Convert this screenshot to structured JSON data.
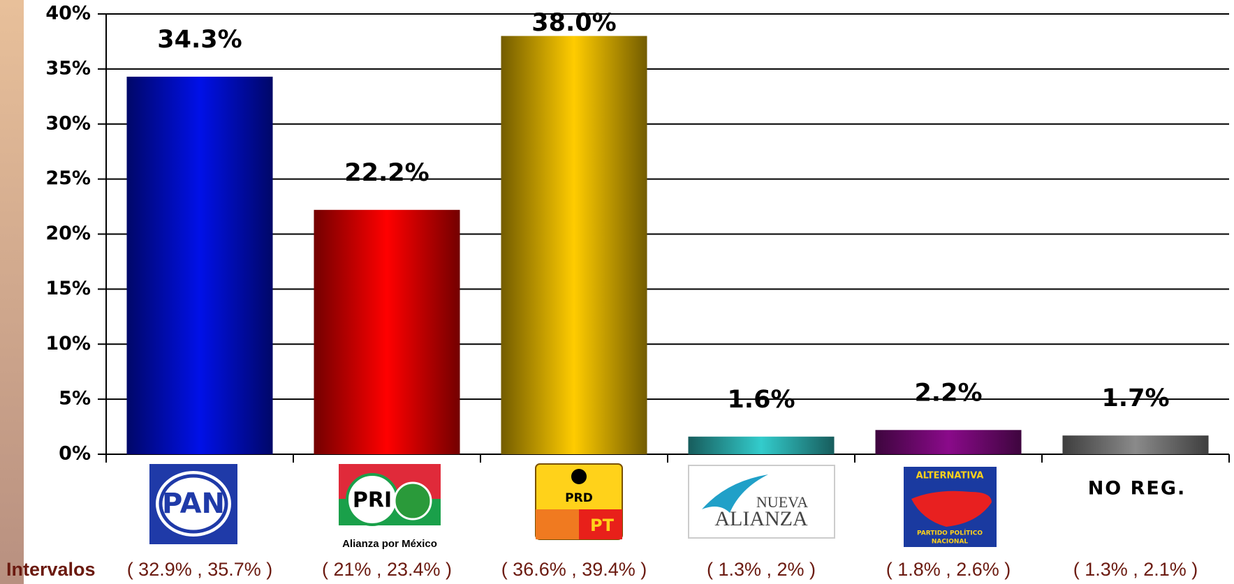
{
  "chart_data": {
    "type": "bar",
    "categories": [
      "PAN",
      "PRI",
      "PRD",
      "ALIANZA",
      "ALTERNATIVA",
      "NO REG."
    ],
    "values": [
      34.3,
      22.2,
      38.0,
      1.6,
      2.2,
      1.7
    ],
    "value_labels": [
      "34.3%",
      "22.2%",
      "38.0%",
      "1.6%",
      "2.2%",
      "1.7%"
    ],
    "colors": [
      "#0010e8",
      "#ff0000",
      "#ffcc00",
      "#33cccc",
      "#8a0a8a",
      "#8a8a8a"
    ],
    "ylim": [
      0,
      40
    ],
    "yticks": [
      {
        "value": 0,
        "label": "0%"
      },
      {
        "value": 5,
        "label": "5%"
      },
      {
        "value": 10,
        "label": "10%"
      },
      {
        "value": 15,
        "label": "15%"
      },
      {
        "value": 20,
        "label": "20%"
      },
      {
        "value": 25,
        "label": "25%"
      },
      {
        "value": 30,
        "label": "30%"
      },
      {
        "value": 35,
        "label": "35%"
      },
      {
        "value": 40,
        "label": "40%"
      }
    ],
    "grid": true,
    "logo_texts": [
      "Alianza por México",
      "PT",
      "NUEVA",
      "PARTIDO POLÍTICO",
      "NACIONAL"
    ],
    "intervals_label": "Intervalos",
    "intervals": [
      "( 32.9% , 35.7% )",
      "( 21% , 23.4% )",
      "( 36.6% , 39.4% )",
      "( 1.3% , 2% )",
      "( 1.8% , 2.6% )",
      "( 1.3% , 2.1% )"
    ]
  }
}
